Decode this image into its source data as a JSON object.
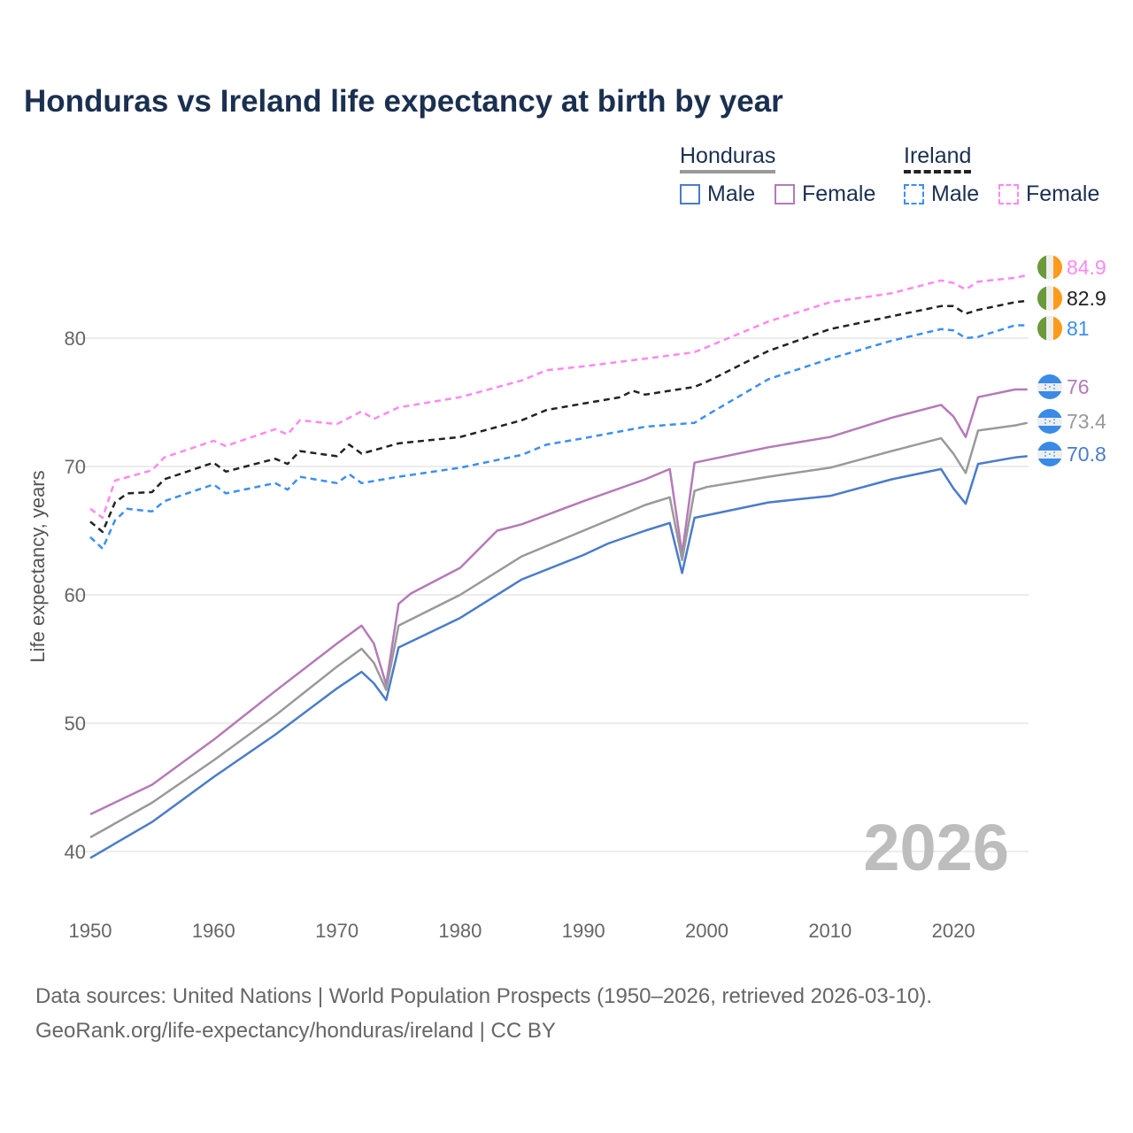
{
  "title": "Honduras vs Ireland life expectancy at birth by year",
  "legend": {
    "honduras": {
      "label": "Honduras",
      "male": "Male",
      "female": "Female"
    },
    "ireland": {
      "label": "Ireland",
      "male": "Male",
      "female": "Female"
    }
  },
  "year_label": "2026",
  "footer": {
    "line1": "Data sources: United Nations | World Population Prospects (1950–2026, retrieved 2026-03-10).",
    "line2": "GeoRank.org/life-expectancy/honduras/ireland | CC BY"
  },
  "chart_data": {
    "type": "line",
    "title": "Honduras vs Ireland life expectancy at birth by year",
    "xlabel": "",
    "ylabel": "Life expectancy, years",
    "xlim": [
      1950,
      2026
    ],
    "ylim": [
      38,
      87
    ],
    "xticks": [
      1950,
      1960,
      1970,
      1980,
      1990,
      2000,
      2010,
      2020
    ],
    "yticks": [
      40,
      50,
      60,
      70,
      80
    ],
    "grid": "horizontal",
    "legend_position": "top-right",
    "series": [
      {
        "name": "Ireland Female",
        "country": "ireland",
        "color": "#ff88f0",
        "dashed": true,
        "end_label": "84.9",
        "x": [
          1950,
          1951,
          1952,
          1955,
          1956,
          1960,
          1961,
          1965,
          1966,
          1967,
          1970,
          1972,
          1973,
          1975,
          1980,
          1985,
          1987,
          1990,
          1995,
          1999,
          2000,
          2005,
          2010,
          2015,
          2019,
          2020,
          2021,
          2022,
          2025,
          2026
        ],
        "values": [
          66.7,
          66.0,
          68.9,
          69.7,
          70.7,
          72.0,
          71.6,
          72.9,
          72.5,
          73.6,
          73.3,
          74.3,
          73.7,
          74.6,
          75.4,
          76.7,
          77.5,
          77.8,
          78.4,
          78.9,
          79.3,
          81.3,
          82.8,
          83.5,
          84.5,
          84.3,
          83.8,
          84.4,
          84.7,
          84.9
        ]
      },
      {
        "name": "Ireland",
        "country": "ireland",
        "color": "#222222",
        "dashed": true,
        "end_label": "82.9",
        "x": [
          1950,
          1951,
          1952,
          1953,
          1955,
          1956,
          1960,
          1961,
          1965,
          1966,
          1967,
          1970,
          1971,
          1972,
          1975,
          1980,
          1985,
          1987,
          1990,
          1993,
          1994,
          1995,
          1999,
          2000,
          2005,
          2010,
          2015,
          2019,
          2020,
          2021,
          2022,
          2025,
          2026
        ],
        "values": [
          65.7,
          64.9,
          67.2,
          67.9,
          68.0,
          69.0,
          70.3,
          69.6,
          70.6,
          70.2,
          71.2,
          70.8,
          71.7,
          71.0,
          71.8,
          72.3,
          73.6,
          74.4,
          74.9,
          75.4,
          75.9,
          75.6,
          76.2,
          76.6,
          79.0,
          80.7,
          81.7,
          82.5,
          82.5,
          81.9,
          82.2,
          82.8,
          82.9
        ]
      },
      {
        "name": "Ireland Male",
        "country": "ireland",
        "color": "#3b8ff0",
        "dashed": true,
        "end_label": "81",
        "x": [
          1950,
          1951,
          1952,
          1953,
          1955,
          1956,
          1960,
          1961,
          1965,
          1966,
          1967,
          1970,
          1971,
          1972,
          1975,
          1980,
          1985,
          1987,
          1990,
          1995,
          1999,
          2000,
          2005,
          2010,
          2015,
          2019,
          2020,
          2021,
          2022,
          2025,
          2026
        ],
        "values": [
          64.5,
          63.6,
          65.8,
          66.7,
          66.5,
          67.3,
          68.6,
          67.9,
          68.7,
          68.2,
          69.2,
          68.7,
          69.4,
          68.7,
          69.2,
          69.9,
          70.9,
          71.7,
          72.2,
          73.1,
          73.4,
          74.0,
          76.8,
          78.4,
          79.8,
          80.7,
          80.6,
          80.0,
          80.1,
          81.0,
          81.0
        ]
      },
      {
        "name": "Honduras Female",
        "country": "honduras",
        "color": "#b57ab8",
        "dashed": false,
        "end_label": "76",
        "x": [
          1950,
          1955,
          1960,
          1965,
          1970,
          1972,
          1973,
          1974,
          1975,
          1976,
          1980,
          1983,
          1985,
          1990,
          1995,
          1997,
          1998,
          1999,
          2000,
          2005,
          2010,
          2015,
          2019,
          2020,
          2021,
          2022,
          2025,
          2026
        ],
        "values": [
          42.9,
          45.2,
          48.7,
          52.5,
          56.2,
          57.6,
          56.2,
          53.0,
          59.3,
          60.1,
          62.1,
          65.0,
          65.5,
          67.3,
          69.0,
          69.8,
          63.2,
          70.3,
          70.5,
          71.5,
          72.3,
          73.8,
          74.8,
          73.9,
          72.3,
          75.4,
          76.0,
          76.0
        ]
      },
      {
        "name": "Honduras",
        "country": "honduras",
        "color": "#999999",
        "dashed": false,
        "end_label": "73.4",
        "x": [
          1950,
          1955,
          1960,
          1965,
          1970,
          1972,
          1973,
          1974,
          1975,
          1980,
          1985,
          1990,
          1995,
          1997,
          1998,
          1999,
          2000,
          2005,
          2010,
          2015,
          2019,
          2020,
          2021,
          2022,
          2025,
          2026
        ],
        "values": [
          41.1,
          43.8,
          47.1,
          50.6,
          54.4,
          55.8,
          54.7,
          52.6,
          57.6,
          60.0,
          63.0,
          65.0,
          67.0,
          67.6,
          62.7,
          68.1,
          68.4,
          69.2,
          69.9,
          71.2,
          72.2,
          71.0,
          69.5,
          72.8,
          73.2,
          73.4
        ]
      },
      {
        "name": "Honduras Male",
        "country": "honduras",
        "color": "#4a7cc9",
        "dashed": false,
        "end_label": "70.8",
        "x": [
          1950,
          1955,
          1960,
          1965,
          1970,
          1972,
          1973,
          1974,
          1975,
          1980,
          1985,
          1990,
          1992,
          1995,
          1997,
          1998,
          1999,
          2000,
          2005,
          2010,
          2015,
          2019,
          2020,
          2021,
          2022,
          2025,
          2026
        ],
        "values": [
          39.5,
          42.3,
          45.8,
          49.1,
          52.7,
          54.0,
          53.1,
          51.8,
          55.9,
          58.2,
          61.2,
          63.1,
          64.0,
          65.0,
          65.6,
          61.7,
          66.0,
          66.2,
          67.2,
          67.7,
          69.0,
          69.8,
          68.3,
          67.1,
          70.2,
          70.7,
          70.8
        ]
      }
    ]
  }
}
